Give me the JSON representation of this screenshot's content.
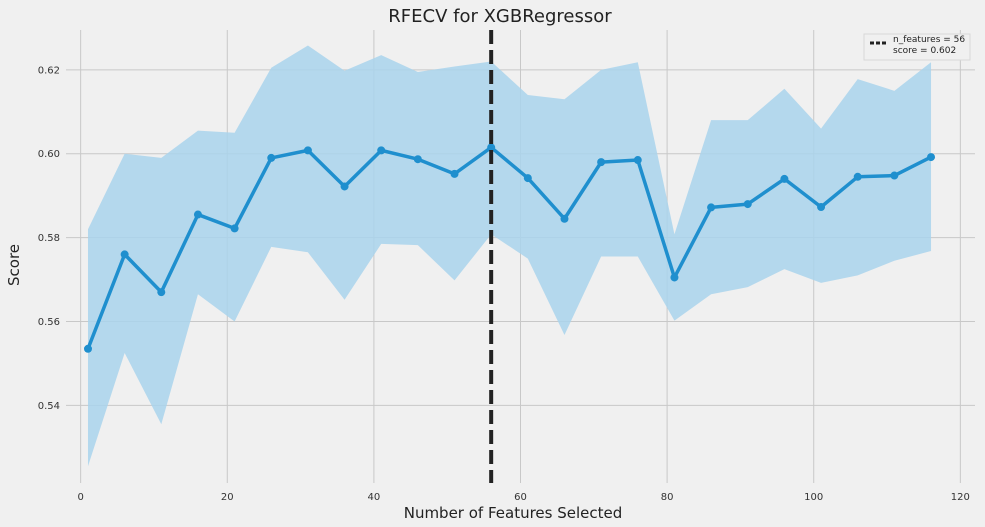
{
  "chart_data": {
    "type": "line",
    "title": "RFECV for XGBRegressor",
    "xlabel": "Number of Features Selected",
    "ylabel": "Score",
    "xlim": [
      -2,
      122
    ],
    "ylim": [
      0.5215,
      0.6295
    ],
    "xticks": [
      0,
      20,
      40,
      60,
      80,
      100,
      120
    ],
    "yticks": [
      0.54,
      0.56,
      0.58,
      0.6,
      0.62
    ],
    "ytick_labels": [
      "0.54",
      "0.56",
      "0.58",
      "0.60",
      "0.62"
    ],
    "grid": true,
    "series": [
      {
        "x": [
          1,
          6,
          11,
          16,
          21,
          26,
          31,
          36,
          41,
          46,
          51,
          56,
          61,
          66,
          71,
          76,
          81,
          86,
          91,
          96,
          101,
          106,
          111,
          116
        ],
        "mean": [
          0.5535,
          0.576,
          0.567,
          0.5855,
          0.5822,
          0.599,
          0.6008,
          0.5922,
          0.6008,
          0.5987,
          0.5952,
          0.6015,
          0.5942,
          0.5845,
          0.598,
          0.5985,
          0.5705,
          0.5872,
          0.588,
          0.594,
          0.5873,
          0.5945,
          0.5948,
          0.5992
        ],
        "upper": [
          0.582,
          0.6,
          0.599,
          0.6055,
          0.605,
          0.6205,
          0.6258,
          0.6198,
          0.6235,
          0.6195,
          0.6208,
          0.622,
          0.614,
          0.613,
          0.62,
          0.6218,
          0.5808,
          0.608,
          0.608,
          0.6155,
          0.606,
          0.6178,
          0.615,
          0.6218
        ],
        "lower": [
          0.5255,
          0.5525,
          0.5355,
          0.5665,
          0.56,
          0.5778,
          0.5765,
          0.5652,
          0.5785,
          0.5782,
          0.5698,
          0.5808,
          0.575,
          0.5568,
          0.5755,
          0.5755,
          0.5602,
          0.5665,
          0.5682,
          0.5725,
          0.5692,
          0.571,
          0.5745,
          0.5768
        ]
      }
    ],
    "optimal": {
      "n_features": 56,
      "score": 0.602
    },
    "legend": {
      "placement": "top-right",
      "line1": "n_features = 56",
      "line2": "score = 0.602"
    },
    "colors": {
      "line": "#1f8fce",
      "band": "#a9d3ec",
      "vline": "#222222",
      "grid": "#c8c8c8",
      "background": "#f0f0f0"
    }
  }
}
